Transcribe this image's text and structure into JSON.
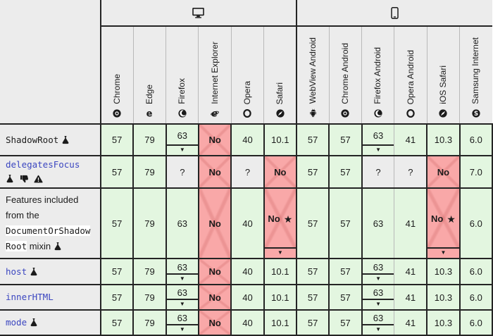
{
  "colors": {
    "supported_bg": "#e3f6e0",
    "unsupported_bg": "#f9a8a8",
    "unknown_bg": "#ececec",
    "header_bg": "#ececec",
    "border_dark": "#242424",
    "border_light": "#b9b9b9",
    "link": "#3b46c0",
    "text": "#1b1b1b"
  },
  "table": {
    "corner_label": "",
    "groups": [
      {
        "id": "desktop",
        "icon": "desktop-icon",
        "span": 6
      },
      {
        "id": "mobile",
        "icon": "mobile-icon",
        "span": 6
      }
    ],
    "browsers": [
      {
        "id": "chrome",
        "label": "Chrome",
        "icon": "chrome-icon"
      },
      {
        "id": "edge",
        "label": "Edge",
        "icon": "edge-icon"
      },
      {
        "id": "firefox",
        "label": "Firefox",
        "icon": "firefox-icon"
      },
      {
        "id": "internet-explorer",
        "label": "Internet Explorer",
        "icon": "ie-icon"
      },
      {
        "id": "opera",
        "label": "Opera",
        "icon": "opera-icon"
      },
      {
        "id": "safari",
        "label": "Safari",
        "icon": "safari-icon"
      },
      {
        "id": "webview-android",
        "label": "WebView Android",
        "icon": "android-icon"
      },
      {
        "id": "chrome-android",
        "label": "Chrome Android",
        "icon": "chrome-icon"
      },
      {
        "id": "firefox-android",
        "label": "Firefox Android",
        "icon": "firefox-icon"
      },
      {
        "id": "opera-android",
        "label": "Opera Android",
        "icon": "opera-icon"
      },
      {
        "id": "ios-safari",
        "label": "iOS Safari",
        "icon": "safari-icon"
      },
      {
        "id": "samsung-internet",
        "label": "Samsung Internet",
        "icon": "samsung-icon"
      }
    ],
    "rows": [
      {
        "feature": "ShadowRoot",
        "label_parts": [
          {
            "type": "code",
            "text": "ShadowRoot"
          },
          {
            "type": "icon",
            "icon": "experimental-icon"
          }
        ],
        "cells": [
          {
            "v": "57",
            "s": "yes"
          },
          {
            "v": "79",
            "s": "yes"
          },
          {
            "v": "63",
            "s": "yes",
            "note": true
          },
          {
            "v": "No",
            "s": "no"
          },
          {
            "v": "40",
            "s": "yes"
          },
          {
            "v": "10.1",
            "s": "yes"
          },
          {
            "v": "57",
            "s": "yes"
          },
          {
            "v": "57",
            "s": "yes"
          },
          {
            "v": "63",
            "s": "yes",
            "note": true
          },
          {
            "v": "41",
            "s": "yes"
          },
          {
            "v": "10.3",
            "s": "yes"
          },
          {
            "v": "6.0",
            "s": "yes"
          }
        ]
      },
      {
        "feature": "delegatesFocus",
        "label_parts": [
          {
            "type": "code-link",
            "text": "delegatesFocus"
          },
          {
            "type": "break"
          },
          {
            "type": "icon",
            "icon": "experimental-icon"
          },
          {
            "type": "icon",
            "icon": "thumbs-down-icon"
          },
          {
            "type": "icon",
            "icon": "warning-icon"
          }
        ],
        "cells": [
          {
            "v": "57",
            "s": "yes"
          },
          {
            "v": "79",
            "s": "yes"
          },
          {
            "v": "?",
            "s": "unknown"
          },
          {
            "v": "No",
            "s": "no"
          },
          {
            "v": "?",
            "s": "unknown"
          },
          {
            "v": "No",
            "s": "no"
          },
          {
            "v": "57",
            "s": "yes"
          },
          {
            "v": "57",
            "s": "yes"
          },
          {
            "v": "?",
            "s": "unknown"
          },
          {
            "v": "?",
            "s": "unknown"
          },
          {
            "v": "No",
            "s": "no"
          },
          {
            "v": "7.0",
            "s": "yes"
          }
        ]
      },
      {
        "feature": "Features included from the DocumentOrShadowRoot mixin",
        "tall": true,
        "label_parts": [
          {
            "type": "text",
            "text": "Features included from the "
          },
          {
            "type": "code",
            "text": "DocumentOrShadowRoot",
            "wrap": true
          },
          {
            "type": "text",
            "text": " mixin "
          },
          {
            "type": "icon",
            "icon": "experimental-icon"
          }
        ],
        "cells": [
          {
            "v": "57",
            "s": "yes"
          },
          {
            "v": "79",
            "s": "yes"
          },
          {
            "v": "63",
            "s": "yes"
          },
          {
            "v": "No",
            "s": "no"
          },
          {
            "v": "40",
            "s": "yes"
          },
          {
            "v": "No",
            "s": "no",
            "star": true,
            "note": true
          },
          {
            "v": "57",
            "s": "yes"
          },
          {
            "v": "57",
            "s": "yes"
          },
          {
            "v": "63",
            "s": "yes"
          },
          {
            "v": "41",
            "s": "yes"
          },
          {
            "v": "No",
            "s": "no",
            "star": true,
            "note": true
          },
          {
            "v": "6.0",
            "s": "yes"
          }
        ]
      },
      {
        "feature": "host",
        "label_parts": [
          {
            "type": "code-link",
            "text": "host"
          },
          {
            "type": "icon",
            "icon": "experimental-icon"
          }
        ],
        "cells": [
          {
            "v": "57",
            "s": "yes"
          },
          {
            "v": "79",
            "s": "yes"
          },
          {
            "v": "63",
            "s": "yes",
            "note": true
          },
          {
            "v": "No",
            "s": "no"
          },
          {
            "v": "40",
            "s": "yes"
          },
          {
            "v": "10.1",
            "s": "yes"
          },
          {
            "v": "57",
            "s": "yes"
          },
          {
            "v": "57",
            "s": "yes"
          },
          {
            "v": "63",
            "s": "yes",
            "note": true
          },
          {
            "v": "41",
            "s": "yes"
          },
          {
            "v": "10.3",
            "s": "yes"
          },
          {
            "v": "6.0",
            "s": "yes"
          }
        ]
      },
      {
        "feature": "innerHTML",
        "label_parts": [
          {
            "type": "code-link",
            "text": "innerHTML"
          }
        ],
        "cells": [
          {
            "v": "57",
            "s": "yes"
          },
          {
            "v": "79",
            "s": "yes"
          },
          {
            "v": "63",
            "s": "yes",
            "note": true
          },
          {
            "v": "No",
            "s": "no"
          },
          {
            "v": "40",
            "s": "yes"
          },
          {
            "v": "10.1",
            "s": "yes"
          },
          {
            "v": "57",
            "s": "yes"
          },
          {
            "v": "57",
            "s": "yes"
          },
          {
            "v": "63",
            "s": "yes",
            "note": true
          },
          {
            "v": "41",
            "s": "yes"
          },
          {
            "v": "10.3",
            "s": "yes"
          },
          {
            "v": "6.0",
            "s": "yes"
          }
        ]
      },
      {
        "feature": "mode",
        "label_parts": [
          {
            "type": "code-link",
            "text": "mode"
          },
          {
            "type": "icon",
            "icon": "experimental-icon"
          }
        ],
        "cells": [
          {
            "v": "57",
            "s": "yes"
          },
          {
            "v": "79",
            "s": "yes"
          },
          {
            "v": "63",
            "s": "yes",
            "note": true
          },
          {
            "v": "No",
            "s": "no"
          },
          {
            "v": "40",
            "s": "yes"
          },
          {
            "v": "10.1",
            "s": "yes"
          },
          {
            "v": "57",
            "s": "yes"
          },
          {
            "v": "57",
            "s": "yes"
          },
          {
            "v": "63",
            "s": "yes",
            "note": true
          },
          {
            "v": "41",
            "s": "yes"
          },
          {
            "v": "10.3",
            "s": "yes"
          },
          {
            "v": "6.0",
            "s": "yes"
          }
        ]
      }
    ],
    "note_marker": "▼",
    "footnote_star": "★"
  }
}
